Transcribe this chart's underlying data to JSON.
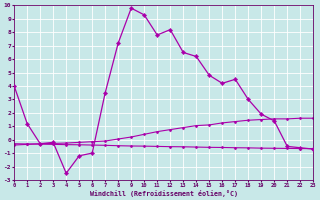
{
  "xlabel": "Windchill (Refroidissement éolien,°C)",
  "temp_x": [
    0,
    1,
    2,
    3,
    4,
    5,
    6,
    7,
    8,
    9,
    10,
    11,
    12,
    13,
    14,
    15,
    16,
    17,
    18,
    19,
    20,
    21,
    22,
    23
  ],
  "temp_y": [
    4.0,
    1.2,
    -0.3,
    -0.2,
    -2.5,
    -1.2,
    -1.0,
    3.5,
    7.2,
    9.8,
    9.3,
    7.8,
    8.2,
    6.5,
    6.2,
    4.8,
    4.2,
    4.5,
    3.0,
    1.9,
    1.4,
    -0.5,
    -0.6,
    -0.7
  ],
  "wc1_x": [
    0,
    1,
    2,
    3,
    4,
    5,
    6,
    7,
    8,
    9,
    10,
    11,
    12,
    13,
    14,
    15,
    16,
    17,
    18,
    19,
    20,
    21,
    22,
    23
  ],
  "wc1_y": [
    -0.4,
    -0.35,
    -0.3,
    -0.28,
    -0.25,
    -0.2,
    -0.15,
    -0.1,
    0.05,
    0.2,
    0.4,
    0.6,
    0.75,
    0.9,
    1.05,
    1.1,
    1.25,
    1.35,
    1.45,
    1.5,
    1.55,
    1.55,
    1.6,
    1.6
  ],
  "wc2_x": [
    0,
    1,
    2,
    3,
    4,
    5,
    6,
    7,
    8,
    9,
    10,
    11,
    12,
    13,
    14,
    15,
    16,
    17,
    18,
    19,
    20,
    21,
    22,
    23
  ],
  "wc2_y": [
    -0.3,
    -0.32,
    -0.33,
    -0.35,
    -0.37,
    -0.38,
    -0.4,
    -0.42,
    -0.45,
    -0.47,
    -0.48,
    -0.5,
    -0.52,
    -0.53,
    -0.55,
    -0.57,
    -0.58,
    -0.6,
    -0.61,
    -0.63,
    -0.64,
    -0.65,
    -0.66,
    -0.67
  ],
  "line_color": "#aa00aa",
  "bg_color": "#c8e8e8",
  "grid_color": "#ffffff",
  "tick_color": "#660066",
  "ylim": [
    -3,
    10
  ],
  "xlim": [
    0,
    23
  ],
  "yticks": [
    -3,
    -2,
    -1,
    0,
    1,
    2,
    3,
    4,
    5,
    6,
    7,
    8,
    9,
    10
  ],
  "xticks": [
    0,
    1,
    2,
    3,
    4,
    5,
    6,
    7,
    8,
    9,
    10,
    11,
    12,
    13,
    14,
    15,
    16,
    17,
    18,
    19,
    20,
    21,
    22,
    23
  ]
}
